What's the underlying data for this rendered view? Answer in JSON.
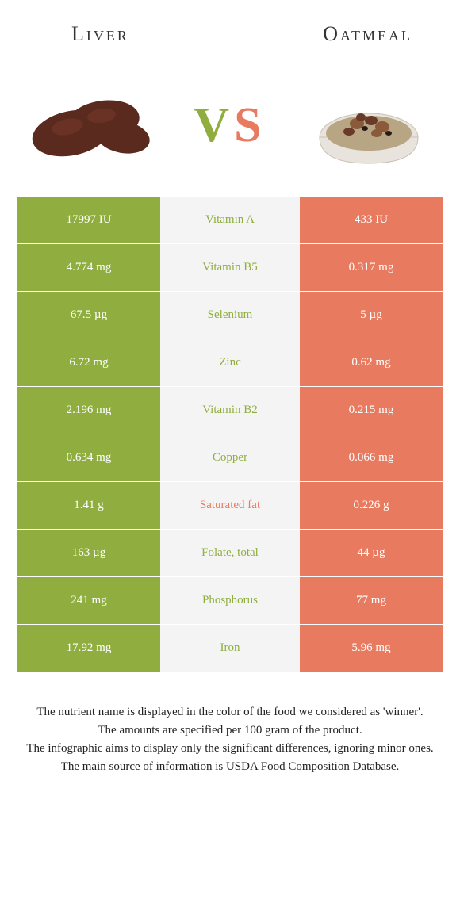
{
  "header": {
    "left_title": "Liver",
    "right_title": "Oatmeal"
  },
  "vs": {
    "v": "V",
    "s": "S"
  },
  "colors": {
    "left": "#8fae3f",
    "right": "#e87a5f",
    "mid_bg": "#f4f4f4",
    "bg": "#ffffff",
    "text_dark": "#333333"
  },
  "rows": [
    {
      "left": "17997 IU",
      "mid": "Vitamin A",
      "right": "433 IU",
      "winner": "left"
    },
    {
      "left": "4.774 mg",
      "mid": "Vitamin B5",
      "right": "0.317 mg",
      "winner": "left"
    },
    {
      "left": "67.5 µg",
      "mid": "Selenium",
      "right": "5 µg",
      "winner": "left"
    },
    {
      "left": "6.72 mg",
      "mid": "Zinc",
      "right": "0.62 mg",
      "winner": "left"
    },
    {
      "left": "2.196 mg",
      "mid": "Vitamin B2",
      "right": "0.215 mg",
      "winner": "left"
    },
    {
      "left": "0.634 mg",
      "mid": "Copper",
      "right": "0.066 mg",
      "winner": "left"
    },
    {
      "left": "1.41 g",
      "mid": "Saturated fat",
      "right": "0.226 g",
      "winner": "right"
    },
    {
      "left": "163 µg",
      "mid": "Folate, total",
      "right": "44 µg",
      "winner": "left"
    },
    {
      "left": "241 mg",
      "mid": "Phosphorus",
      "right": "77 mg",
      "winner": "left"
    },
    {
      "left": "17.92 mg",
      "mid": "Iron",
      "right": "5.96 mg",
      "winner": "left"
    }
  ],
  "footer": {
    "line1": "The nutrient name is displayed in the color of the food we considered as 'winner'.",
    "line2": "The amounts are specified per 100 gram of the product.",
    "line3": "The infographic aims to display only the significant differences, ignoring minor ones.",
    "line4": "The main source of information is USDA Food Composition Database."
  }
}
